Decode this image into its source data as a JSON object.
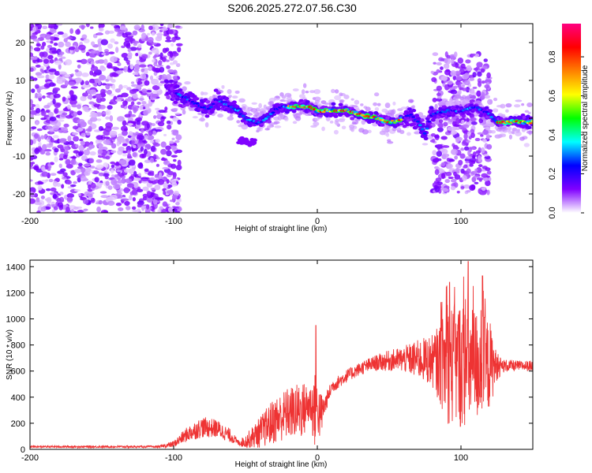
{
  "figure": {
    "title": "S206.2025.272.07.56.C30",
    "colorbar": {
      "label": "Normalized spectral amplitude",
      "ticks": [
        "0.0",
        "0.2",
        "0.4",
        "0.6",
        "0.8"
      ],
      "tick_values": [
        0.0,
        0.2,
        0.4,
        0.6,
        0.8
      ],
      "range": [
        0,
        0.97
      ],
      "stops": [
        "#ffffff",
        "#8000ff",
        "#0000ff",
        "#00ffff",
        "#00ff00",
        "#ffff00",
        "#ff8000",
        "#ff0000",
        "#ff0080"
      ]
    }
  },
  "chart_data": [
    {
      "type": "heatmap",
      "name": "spectrogram",
      "xlabel": "Height of straight line (km)",
      "ylabel": "Frequency (Hz)",
      "xlim": [
        -200,
        150
      ],
      "ylim": [
        -25,
        25
      ],
      "xticks": [
        -200,
        -100,
        0,
        100
      ],
      "xtick_labels": [
        "-200",
        "-100",
        "0",
        "100"
      ],
      "yticks": [
        -20,
        -10,
        0,
        10,
        20
      ],
      "ytick_labels": [
        "-20",
        "-10",
        "0",
        "10",
        "20"
      ],
      "ridge": {
        "x": [
          -105,
          -100,
          -95,
          -90,
          -85,
          -80,
          -75,
          -70,
          -65,
          -60,
          -55,
          -50,
          -45,
          -40,
          -35,
          -30,
          -25,
          -20,
          -15,
          -10,
          -5,
          0,
          10,
          20,
          30,
          40,
          50,
          55,
          60,
          65,
          70,
          75,
          80,
          90,
          100,
          110,
          120,
          125,
          130,
          140,
          150
        ],
        "y": [
          8,
          7,
          6,
          5,
          4,
          3,
          2.5,
          5,
          4,
          3,
          2,
          0,
          -1,
          -1,
          0,
          2,
          3,
          3,
          3,
          3,
          3,
          2,
          2,
          2,
          1,
          0,
          -1,
          -1,
          0,
          1,
          -1,
          -4,
          1,
          2,
          2,
          3,
          1,
          -1,
          -1,
          -1,
          -1
        ]
      },
      "regions": [
        {
          "name": "noise",
          "xrange": [
            -200,
            -100
          ],
          "yrange": [
            -25,
            25
          ],
          "amplitude": 0.05
        },
        {
          "name": "scatter",
          "xrange": [
            80,
            120
          ],
          "yrange": [
            -20,
            17
          ],
          "amplitude": 0.08
        }
      ]
    },
    {
      "type": "line",
      "name": "snr",
      "color": "#ee3333",
      "xlabel": "Height of straight line (km)",
      "ylabel": "SNR (10 * v/v)",
      "xlim": [
        -200,
        150
      ],
      "ylim": [
        0,
        1450
      ],
      "xticks": [
        -200,
        -100,
        0,
        100
      ],
      "xtick_labels": [
        "-200",
        "-100",
        "0",
        "100"
      ],
      "yticks": [
        0,
        200,
        400,
        600,
        800,
        1000,
        1200,
        1400
      ],
      "ytick_labels": [
        "0",
        "200",
        "400",
        "600",
        "800",
        "1000",
        "1200",
        "1400"
      ],
      "envelope": {
        "x": [
          -200,
          -110,
          -100,
          -90,
          -80,
          -70,
          -60,
          -55,
          -50,
          -40,
          -30,
          -20,
          -10,
          -5,
          -2,
          0,
          2,
          5,
          10,
          20,
          30,
          40,
          50,
          60,
          70,
          80,
          85,
          90,
          100,
          110,
          120,
          125,
          130,
          140,
          150
        ],
        "mean": [
          20,
          20,
          40,
          120,
          170,
          160,
          100,
          50,
          60,
          130,
          220,
          280,
          300,
          350,
          300,
          320,
          250,
          330,
          480,
          560,
          620,
          660,
          680,
          690,
          690,
          680,
          660,
          650,
          650,
          640,
          650,
          630,
          640,
          640,
          640
        ],
        "spread": [
          8,
          8,
          25,
          60,
          80,
          70,
          50,
          20,
          50,
          120,
          180,
          200,
          220,
          150,
          300,
          200,
          200,
          80,
          50,
          50,
          50,
          60,
          80,
          100,
          150,
          200,
          300,
          450,
          500,
          450,
          350,
          100,
          50,
          40,
          40
        ]
      },
      "peaks": [
        {
          "x": -1,
          "y": 950
        },
        {
          "x": 105,
          "y": 1440
        },
        {
          "x": 92,
          "y": 1280
        },
        {
          "x": 115,
          "y": 1330
        }
      ]
    }
  ]
}
